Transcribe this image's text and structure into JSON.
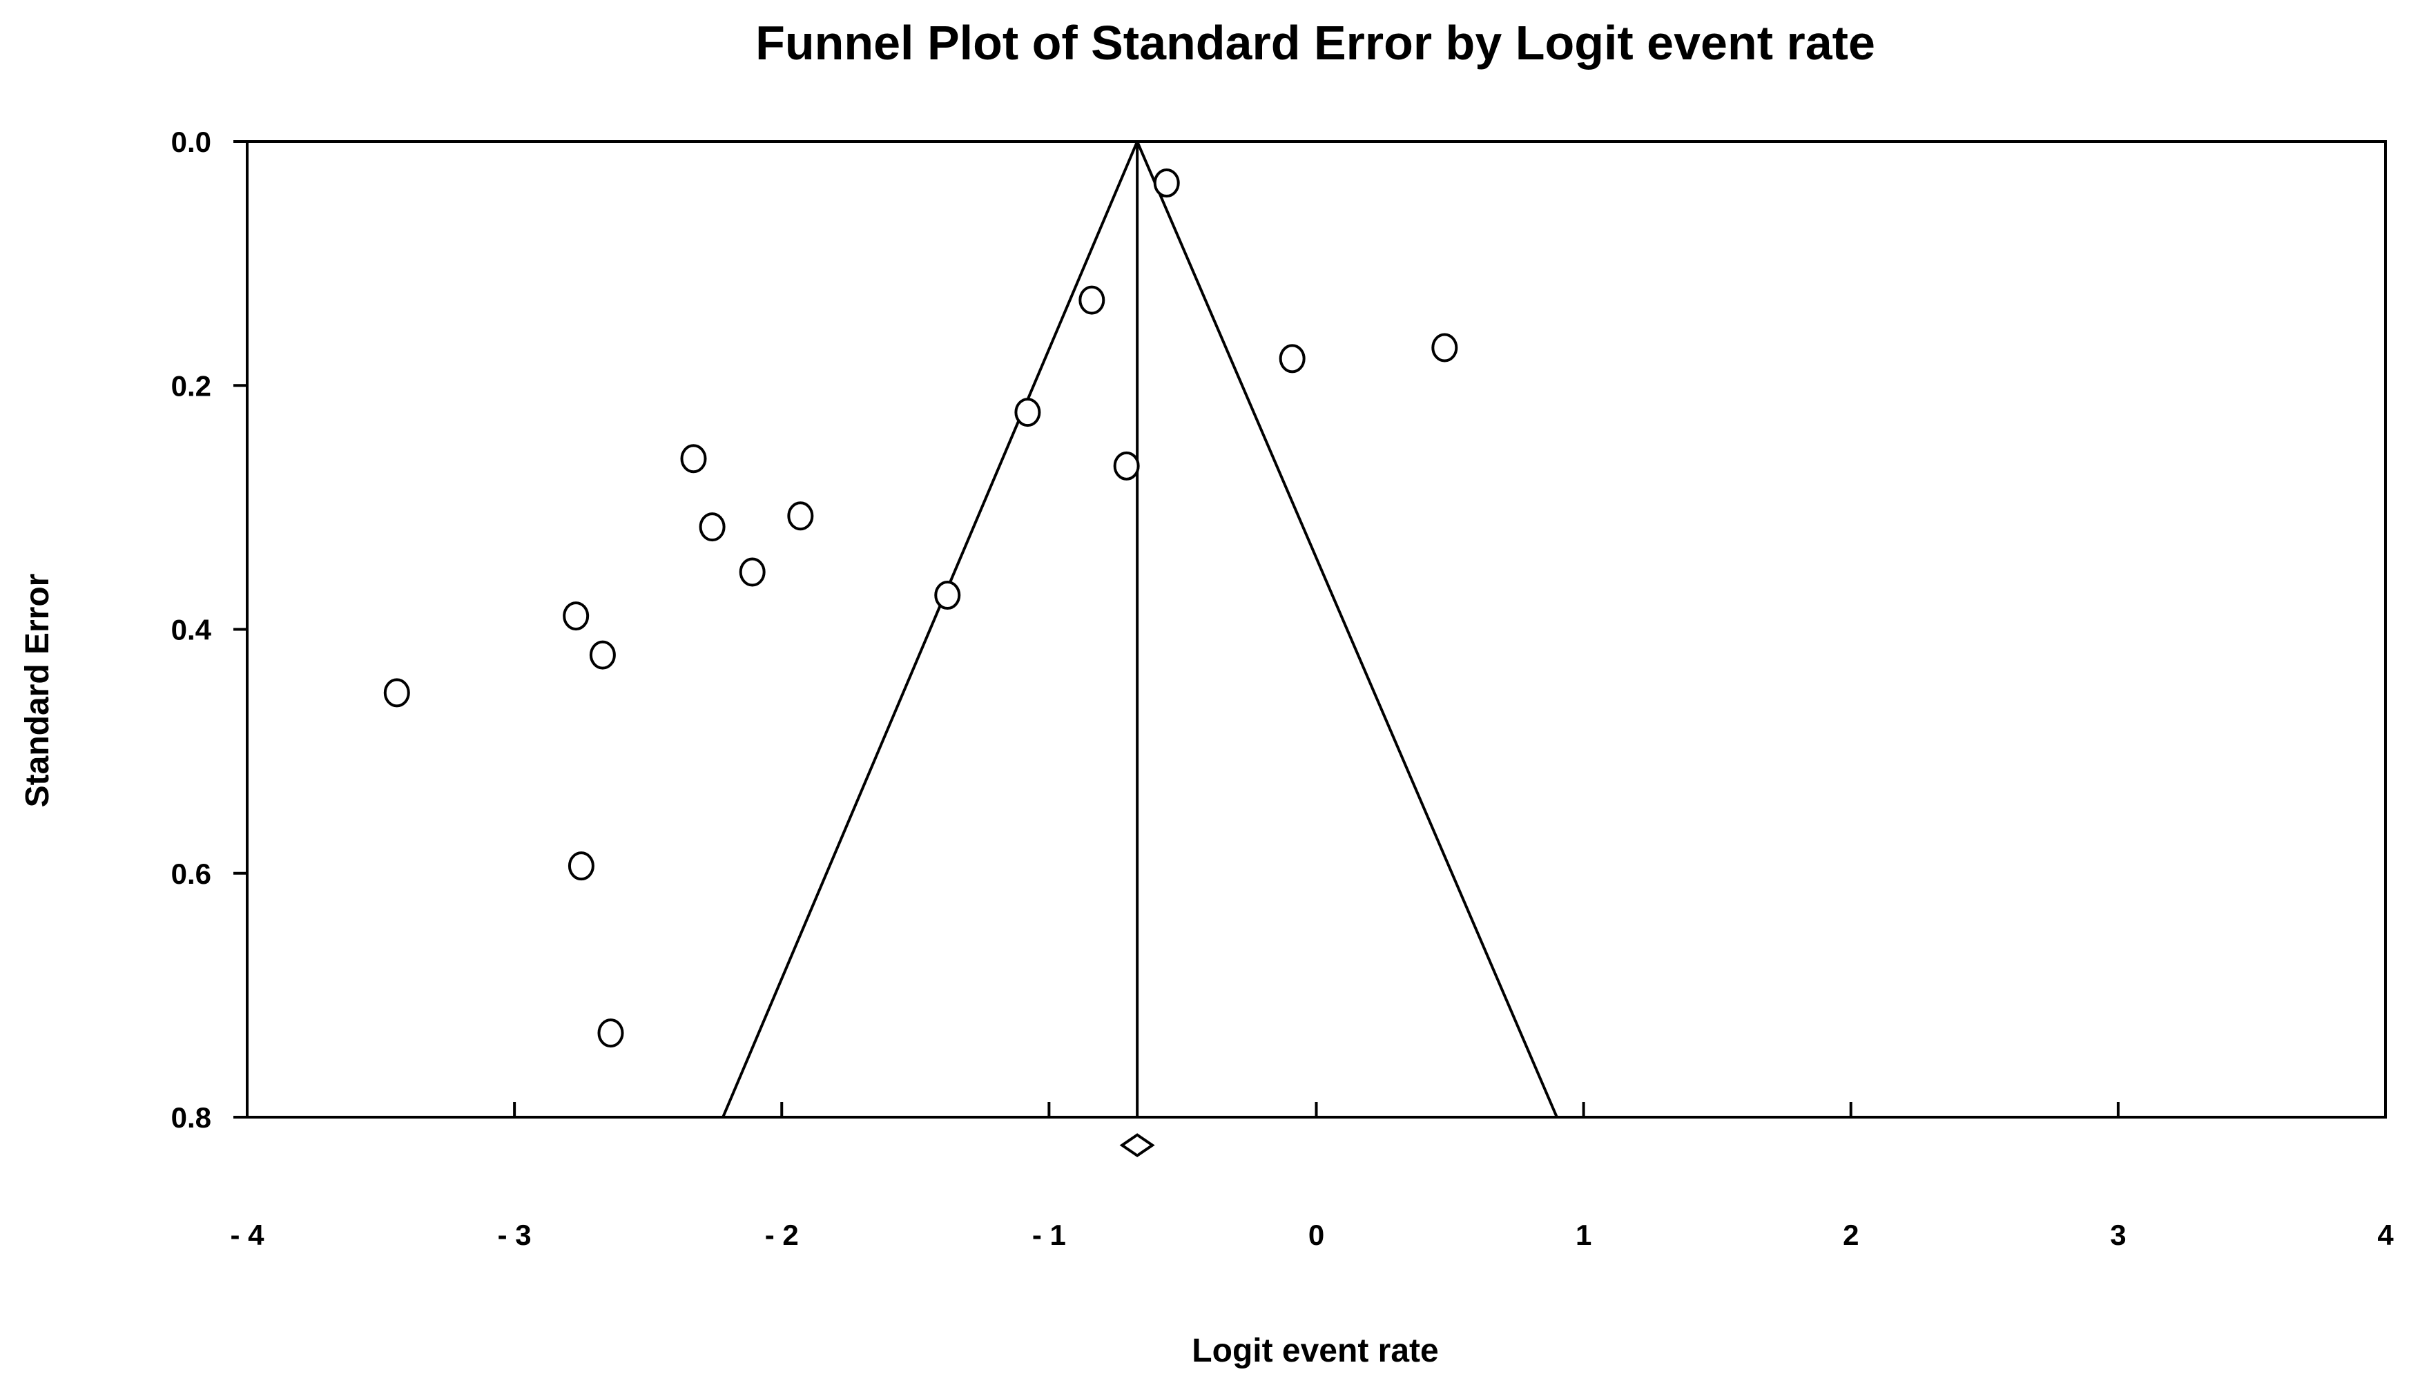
{
  "chart_data": {
    "type": "scatter",
    "title": "Funnel Plot of Standard Error by Logit event rate",
    "xlabel": "Logit event rate",
    "ylabel": "Standard Error",
    "xlim": [
      -4,
      4
    ],
    "ylim": [
      0.8,
      0.0
    ],
    "x_ticks": [
      -4,
      -3,
      -2,
      -1,
      0,
      1,
      2,
      3,
      4
    ],
    "y_ticks": [
      0.0,
      0.2,
      0.4,
      0.6,
      0.8
    ],
    "x_tick_labels": [
      "- 4",
      "- 3",
      "- 2",
      "- 1",
      "0",
      "1",
      "2",
      "3",
      "4"
    ],
    "y_tick_labels": [
      "0.0",
      "0.2",
      "0.4",
      "0.6",
      "0.8"
    ],
    "grid": false,
    "summary_effect": -0.67,
    "funnel": {
      "apex": [
        -0.67,
        0.0
      ],
      "bottom_left": [
        -2.22,
        0.8
      ],
      "bottom_right": [
        0.9,
        0.8
      ]
    },
    "points": [
      {
        "x": -0.56,
        "y": 0.034
      },
      {
        "x": -0.84,
        "y": 0.13
      },
      {
        "x": -0.09,
        "y": 0.178
      },
      {
        "x": 0.48,
        "y": 0.169
      },
      {
        "x": -1.08,
        "y": 0.222
      },
      {
        "x": -0.71,
        "y": 0.266
      },
      {
        "x": -2.33,
        "y": 0.26
      },
      {
        "x": -1.93,
        "y": 0.307
      },
      {
        "x": -2.26,
        "y": 0.316
      },
      {
        "x": -2.11,
        "y": 0.353
      },
      {
        "x": -1.38,
        "y": 0.372
      },
      {
        "x": -2.77,
        "y": 0.389
      },
      {
        "x": -2.67,
        "y": 0.421
      },
      {
        "x": -3.44,
        "y": 0.452
      },
      {
        "x": -2.75,
        "y": 0.594
      },
      {
        "x": -2.64,
        "y": 0.731
      }
    ],
    "summary_diamond": {
      "x": -0.67,
      "y": 0.823
    }
  }
}
